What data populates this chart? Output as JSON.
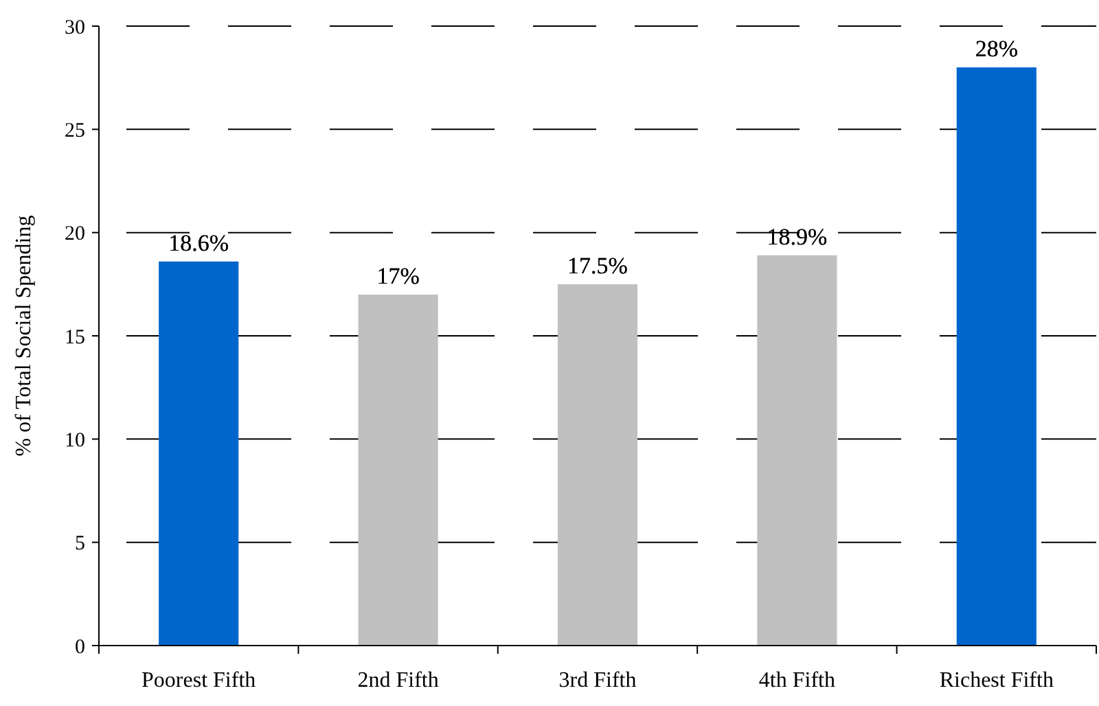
{
  "chart_data": {
    "type": "bar",
    "ylabel": "% of Total Social Spending",
    "categories": [
      "Poorest Fifth",
      "2nd Fifth",
      "3rd Fifth",
      "4th Fifth",
      "Richest Fifth"
    ],
    "values": [
      18.6,
      17,
      17.5,
      18.9,
      28
    ],
    "colors": [
      "#0066cc",
      "#c0c0c0",
      "#c0c0c0",
      "#c0c0c0",
      "#0066cc"
    ],
    "value_labels": [
      "18.6%",
      "17%",
      "17.5%",
      "18.9%",
      "28%"
    ],
    "ylim": [
      0,
      30
    ],
    "yticks": [
      0,
      5,
      10,
      15,
      20,
      25,
      30
    ],
    "grid": "y"
  }
}
